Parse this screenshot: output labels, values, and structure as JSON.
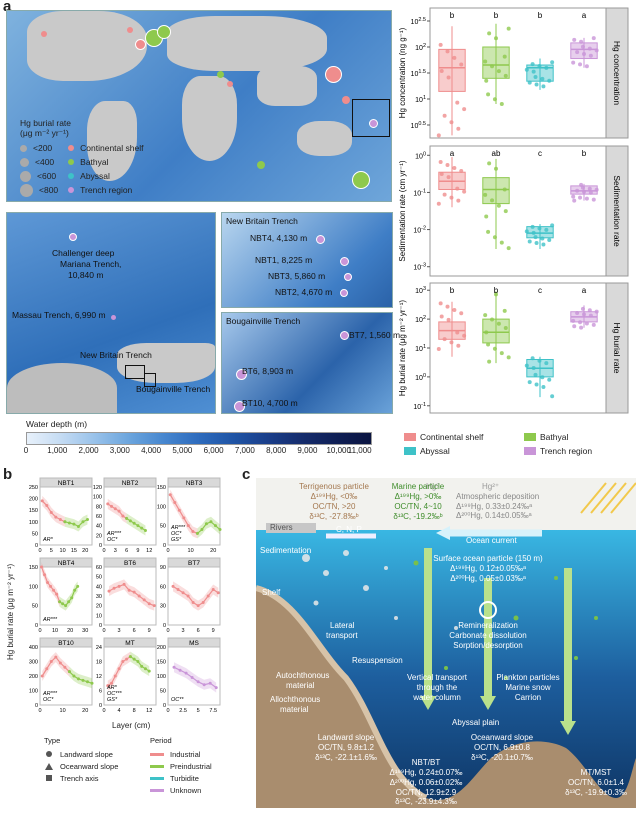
{
  "panels": {
    "a": "a",
    "b": "b",
    "c": "c"
  },
  "colors": {
    "continental": "#ef8d8d",
    "bathyal": "#8ec94d",
    "abyssal": "#3ec2c8",
    "trench": "#c995d8"
  },
  "map_legend": {
    "title": "Hg burial rate",
    "unit": "(μg m⁻² yr⁻¹)",
    "sizes": [
      "<200",
      "<400",
      "<600",
      "<800"
    ],
    "classes": [
      "Continental shelf",
      "Bathyal",
      "Abyssal",
      "Trench region"
    ]
  },
  "mariana_labels": {
    "challenger": "Challenger deep",
    "mariana": "Mariana Trench,",
    "mariana_depth": "10,840 m",
    "massau": "Massau Trench, 6,990 m",
    "new_britain": "New Britain Trench",
    "bougainville": "Bougainville Trench"
  },
  "nbt_inset": {
    "title": "New Britain Trench",
    "sites": [
      "NBT4, 4,130 m",
      "NBT1, 8,225 m",
      "NBT3, 5,860 m",
      "NBT2, 4,670 m"
    ]
  },
  "bt_inset": {
    "title": "Bougainville Trench",
    "sites": [
      "BT7, 1,560 m",
      "BT6, 8,903 m",
      "BT10, 4,700 m"
    ]
  },
  "colorbar": {
    "title": "Water depth (m)",
    "ticks": [
      "0",
      "1,000",
      "2,000",
      "3,000",
      "4,000",
      "5,000",
      "6,000",
      "7,000",
      "8,000",
      "9,000",
      "10,000",
      "11,000"
    ]
  },
  "chart_data": [
    {
      "type": "box",
      "facet": "Hg concentration",
      "ylabel": "Hg concentration (ng g⁻¹)",
      "yscale": "log",
      "yticks": [
        "10^2.5",
        "10^2",
        "10^1.5",
        "10^1",
        "10^0.5"
      ],
      "categories": [
        "Continental shelf",
        "Bathyal",
        "Abyssal",
        "Trench region"
      ],
      "letters": [
        "b",
        "b",
        "b",
        "a"
      ],
      "box": [
        {
          "q1": 14,
          "median": 40,
          "q3": 90,
          "min": 2,
          "max": 250
        },
        {
          "q1": 25,
          "median": 45,
          "q3": 100,
          "min": 8,
          "max": 280
        },
        {
          "q1": 22,
          "median": 40,
          "q3": 45,
          "min": 15,
          "max": 60
        },
        {
          "q1": 60,
          "median": 90,
          "q3": 120,
          "min": 40,
          "max": 150
        }
      ]
    },
    {
      "type": "box",
      "facet": "Sedimentation rate",
      "ylabel": "Sedimentation rate (cm yr⁻¹)",
      "yscale": "log",
      "yticks": [
        "10^0",
        "10^-1",
        "10^-2",
        "10^-3"
      ],
      "letters": [
        "a",
        "ab",
        "c",
        "b"
      ],
      "box": [
        {
          "q1": 0.12,
          "median": 0.2,
          "q3": 0.35,
          "min": 0.04,
          "max": 0.9
        },
        {
          "q1": 0.05,
          "median": 0.12,
          "q3": 0.25,
          "min": 0.003,
          "max": 0.8
        },
        {
          "q1": 0.006,
          "median": 0.008,
          "q3": 0.012,
          "min": 0.003,
          "max": 0.014
        },
        {
          "q1": 0.09,
          "median": 0.11,
          "q3": 0.15,
          "min": 0.06,
          "max": 0.17
        }
      ]
    },
    {
      "type": "box",
      "facet": "Hg burial rate",
      "ylabel": "Hg burial rate (μg m⁻² yr⁻¹)",
      "yscale": "log",
      "yticks": [
        "10^3",
        "10^2",
        "10^1",
        "10^0",
        "10^-1"
      ],
      "letters": [
        "b",
        "b",
        "c",
        "a"
      ],
      "box": [
        {
          "q1": 20,
          "median": 40,
          "q3": 80,
          "min": 5,
          "max": 400
        },
        {
          "q1": 15,
          "median": 35,
          "q3": 100,
          "min": 3,
          "max": 900
        },
        {
          "q1": 1,
          "median": 2,
          "q3": 4,
          "min": 0.2,
          "max": 5
        },
        {
          "q1": 80,
          "median": 120,
          "q3": 180,
          "min": 50,
          "max": 300
        }
      ]
    },
    {
      "type": "line",
      "ylabel": "Hg burial rate (μg m⁻² yr⁻¹)",
      "xlabel": "Layer (cm)",
      "subplots": [
        {
          "title": "NBT1",
          "yticks": [
            "250",
            "200",
            "150",
            "100",
            "50",
            "0"
          ],
          "xticks": [
            "0",
            "5",
            "10",
            "15",
            "20"
          ],
          "stats": [
            "AR*"
          ],
          "x": [
            1,
            3,
            5,
            7,
            9,
            11,
            13,
            15,
            17,
            19,
            21
          ],
          "y": [
            190,
            170,
            140,
            120,
            110,
            100,
            95,
            90,
            80,
            100,
            110
          ]
        },
        {
          "title": "NBT2",
          "yticks": [
            "120",
            "100",
            "80",
            "60",
            "40",
            "20",
            "0"
          ],
          "xticks": [
            "0",
            "3",
            "6",
            "9",
            "12"
          ],
          "stats": [
            "AR***",
            "OC*"
          ],
          "x": [
            1,
            2,
            3,
            4,
            5,
            6,
            7,
            8,
            9,
            10,
            11
          ],
          "y": [
            85,
            80,
            75,
            70,
            60,
            55,
            50,
            45,
            40,
            35,
            30
          ]
        },
        {
          "title": "NBT3",
          "yticks": [
            "150",
            "100",
            "50",
            "0"
          ],
          "xticks": [
            "0",
            "10",
            "20"
          ],
          "stats": [
            "AR***",
            "OC*",
            "GS*"
          ],
          "x": [
            1,
            3,
            5,
            7,
            9,
            11,
            13,
            15,
            17,
            19,
            21,
            23
          ],
          "y": [
            130,
            110,
            90,
            70,
            50,
            35,
            30,
            40,
            55,
            60,
            50,
            40
          ]
        },
        {
          "title": "NBT4",
          "yticks": [
            "150",
            "100",
            "50",
            "0"
          ],
          "xticks": [
            "0",
            "10",
            "20",
            "30"
          ],
          "stats": [
            "AR***"
          ],
          "x": [
            1,
            3,
            5,
            7,
            9,
            11,
            13,
            15,
            17,
            19,
            21,
            23,
            25
          ],
          "y": [
            150,
            130,
            110,
            100,
            90,
            80,
            60,
            55,
            50,
            60,
            70,
            90,
            100
          ]
        },
        {
          "title": "BT6",
          "yticks": [
            "60",
            "50",
            "40",
            "30",
            "20",
            "10",
            "0"
          ],
          "xticks": [
            "0",
            "3",
            "6",
            "9"
          ],
          "stats": [],
          "x": [
            1,
            2,
            3,
            4,
            5,
            6,
            7,
            8,
            9,
            10
          ],
          "y": [
            35,
            38,
            40,
            42,
            36,
            34,
            30,
            26,
            22,
            20
          ]
        },
        {
          "title": "BT7",
          "yticks": [
            "90",
            "60",
            "30",
            "0"
          ],
          "xticks": [
            "0",
            "3",
            "6",
            "9"
          ],
          "stats": [],
          "x": [
            1,
            2,
            3,
            4,
            5,
            6,
            7,
            8,
            9,
            10
          ],
          "y": [
            60,
            55,
            50,
            45,
            35,
            30,
            35,
            45,
            55,
            50
          ]
        },
        {
          "title": "BT10",
          "yticks": [
            "400",
            "300",
            "200",
            "100",
            "0"
          ],
          "xticks": [
            "0",
            "10",
            "20"
          ],
          "stats": [
            "AR***",
            "OC*"
          ],
          "x": [
            1,
            3,
            5,
            7,
            9,
            11,
            13,
            15,
            17,
            19,
            21,
            23
          ],
          "y": [
            200,
            250,
            300,
            330,
            290,
            260,
            230,
            200,
            180,
            170,
            160,
            150
          ]
        },
        {
          "title": "MT",
          "yticks": [
            "24",
            "18",
            "12",
            "6",
            "0"
          ],
          "xticks": [
            "0",
            "4",
            "8",
            "12"
          ],
          "stats": [
            "AR*",
            "OC***",
            "GS*"
          ],
          "x": [
            1,
            2,
            3,
            4,
            5,
            6,
            7,
            8,
            9,
            10,
            11,
            12
          ],
          "y": [
            8,
            9,
            12,
            15,
            18,
            19,
            20,
            19,
            18,
            16,
            15,
            14
          ]
        },
        {
          "title": "MS",
          "yticks": [
            "200",
            "150",
            "100",
            "50",
            "0"
          ],
          "xticks": [
            "0",
            "2.5",
            "5",
            "7.5"
          ],
          "stats": [
            "OC**"
          ],
          "x": [
            1,
            2,
            3,
            4,
            5,
            6,
            7,
            8
          ],
          "y": [
            130,
            120,
            110,
            95,
            80,
            70,
            75,
            60
          ]
        }
      ]
    }
  ],
  "legend_b": {
    "type_title": "Type",
    "types": [
      "Landward slope",
      "Oceanward slope",
      "Trench axis"
    ],
    "period_title": "Period",
    "periods": [
      "Industrial",
      "Preindustrial",
      "Turbidite",
      "Unknown"
    ],
    "period_colors": [
      "#ef8d8d",
      "#8ec94d",
      "#3ec2c8",
      "#c995d8"
    ]
  },
  "schematic": {
    "hg0": "Hg⁰",
    "hg2": "Hg²⁺",
    "atmospheric_title": "Atmospheric deposition",
    "atm_l1": "Δ¹⁹⁹Hg, 0.33±0.24‰ᵃ",
    "atm_l2": "Δ²⁰⁰Hg, 0.14±0.05‰ᵃ",
    "terr_title": "Terrigenous particle",
    "terr_l1": "Δ¹⁹⁹Hg, <0‰",
    "terr_l2": "OC/TN, >20",
    "terr_l3": "δ¹³C, -27.8‰ᵇ",
    "marine_title": "Marine particle",
    "marine_l1": "Δ¹⁹⁹Hg, >0‰",
    "marine_l2": "OC/TN, 4~10",
    "marine_l3": "δ¹³C, -19.2‰ᵇ",
    "rivers": "Rivers",
    "cnp": "C, N, P",
    "ocean_current": "Ocean current",
    "sedimentation": "Sedimentation",
    "shelf": "Shelf",
    "surface_title": "Surface ocean particle (150 m)",
    "surf_l1": "Δ¹⁹⁹Hg, 0.12±0.05‰ᵃ",
    "surf_l2": "Δ²⁰⁰Hg, 0.05±0.03‰ᵃ",
    "remin": "Remineralization",
    "carb": "Carbonate dissolution",
    "sorp": "Sorption/desorption",
    "lateral": "Lateral",
    "transport": "transport",
    "resuspension": "Resuspension",
    "autoch": "Autochthonous",
    "material": "material",
    "alloch": "Allochthonous",
    "material2": "material",
    "vertical1": "Vertical transport",
    "vertical2": "through the",
    "vertical3": "water column",
    "plankton1": "Plankton particles",
    "plankton2": "Marine snow",
    "plankton3": "Carrion",
    "abyssal": "Abyssal plain",
    "landward_title": "Landward slope",
    "landward_l1": "OC/TN, 9.8±1.2",
    "landward_l2": "δ¹³C, -22.1±1.6‰",
    "oceanward_title": "Oceanward slope",
    "oceanward_l1": "OC/TN, 6.9±0.8",
    "oceanward_l2": "δ¹³C, -20.1±0.7‰",
    "nbt_title": "NBT/BT",
    "nbt_l1": "Δ¹⁹⁹Hg, 0.24±0.07‰",
    "nbt_l2": "Δ²⁰⁰Hg, 0.06±0.02‰",
    "nbt_l3": "OC/TN, 12.9±2.9",
    "nbt_l4": "δ¹³C, -23.9±4.3‰",
    "mt_title": "MT/MST",
    "mt_l1": "OC/TN, 6.0±1.4",
    "mt_l2": "δ¹³C, -19.9±0.3‰"
  }
}
